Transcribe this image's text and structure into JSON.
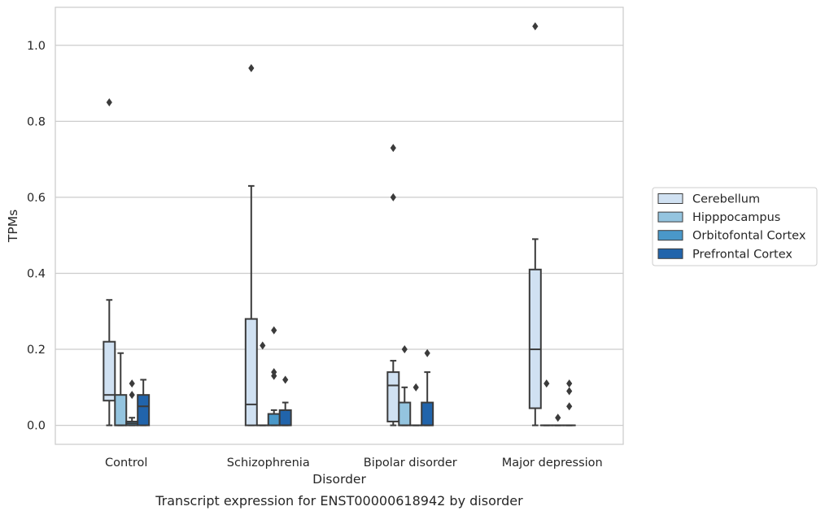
{
  "caption": "Transcript expression for ENST00000618942 by disorder",
  "chart_data": {
    "type": "box",
    "title": "",
    "xlabel": "Disorder",
    "ylabel": "TPMs",
    "ylim": [
      -0.05,
      1.1
    ],
    "yticks": [
      0.0,
      0.2,
      0.4,
      0.6,
      0.8,
      1.0
    ],
    "ytick_labels": [
      "0.0",
      "0.2",
      "0.4",
      "0.6",
      "0.8",
      "1.0"
    ],
    "grid": "horizontal",
    "legend_position": "right",
    "categories": [
      "Control",
      "Schizophrenia",
      "Bipolar disorder",
      "Major depression"
    ],
    "series": [
      {
        "name": "Cerebellum",
        "color": "#d0e1f2",
        "boxes": [
          {
            "whislo": 0.0,
            "q1": 0.065,
            "med": 0.08,
            "q3": 0.22,
            "whishi": 0.33,
            "fliers": [
              0.85
            ]
          },
          {
            "whislo": 0.0,
            "q1": 0.0,
            "med": 0.055,
            "q3": 0.28,
            "whishi": 0.63,
            "fliers": [
              0.94
            ]
          },
          {
            "whislo": 0.0,
            "q1": 0.01,
            "med": 0.105,
            "q3": 0.14,
            "whishi": 0.17,
            "fliers": [
              0.6,
              0.73
            ]
          },
          {
            "whislo": 0.0,
            "q1": 0.045,
            "med": 0.2,
            "q3": 0.41,
            "whishi": 0.49,
            "fliers": [
              1.05
            ]
          }
        ]
      },
      {
        "name": "Hipppocampus",
        "color": "#94c4df",
        "boxes": [
          {
            "whislo": 0.0,
            "q1": 0.0,
            "med": 0.0,
            "q3": 0.08,
            "whishi": 0.19,
            "fliers": []
          },
          {
            "whislo": 0.0,
            "q1": 0.0,
            "med": 0.0,
            "q3": 0.0,
            "whishi": 0.0,
            "fliers": [
              0.21
            ]
          },
          {
            "whislo": 0.0,
            "q1": 0.0,
            "med": 0.0,
            "q3": 0.06,
            "whishi": 0.1,
            "fliers": [
              0.2
            ]
          },
          {
            "whislo": 0.0,
            "q1": 0.0,
            "med": 0.0,
            "q3": 0.0,
            "whishi": 0.0,
            "fliers": [
              0.11
            ]
          }
        ]
      },
      {
        "name": "Orbitofontal Cortex",
        "color": "#4a98c9",
        "boxes": [
          {
            "whislo": 0.0,
            "q1": 0.0,
            "med": 0.005,
            "q3": 0.01,
            "whishi": 0.02,
            "fliers": [
              0.08,
              0.11
            ]
          },
          {
            "whislo": 0.0,
            "q1": 0.0,
            "med": 0.0,
            "q3": 0.03,
            "whishi": 0.04,
            "fliers": [
              0.13,
              0.14,
              0.25
            ]
          },
          {
            "whislo": 0.0,
            "q1": 0.0,
            "med": 0.0,
            "q3": 0.0,
            "whishi": 0.0,
            "fliers": [
              0.1
            ]
          },
          {
            "whislo": 0.0,
            "q1": 0.0,
            "med": 0.0,
            "q3": 0.0,
            "whishi": 0.0,
            "fliers": [
              0.02
            ]
          }
        ]
      },
      {
        "name": "Prefrontal Cortex",
        "color": "#2164ab",
        "boxes": [
          {
            "whislo": 0.0,
            "q1": 0.0,
            "med": 0.05,
            "q3": 0.08,
            "whishi": 0.12,
            "fliers": []
          },
          {
            "whislo": 0.0,
            "q1": 0.0,
            "med": 0.0,
            "q3": 0.04,
            "whishi": 0.06,
            "fliers": [
              0.12
            ]
          },
          {
            "whislo": 0.0,
            "q1": 0.0,
            "med": 0.0,
            "q3": 0.06,
            "whishi": 0.14,
            "fliers": [
              0.19
            ]
          },
          {
            "whislo": 0.0,
            "q1": 0.0,
            "med": 0.0,
            "q3": 0.0,
            "whishi": 0.0,
            "fliers": [
              0.05,
              0.09,
              0.11
            ]
          }
        ]
      }
    ]
  }
}
